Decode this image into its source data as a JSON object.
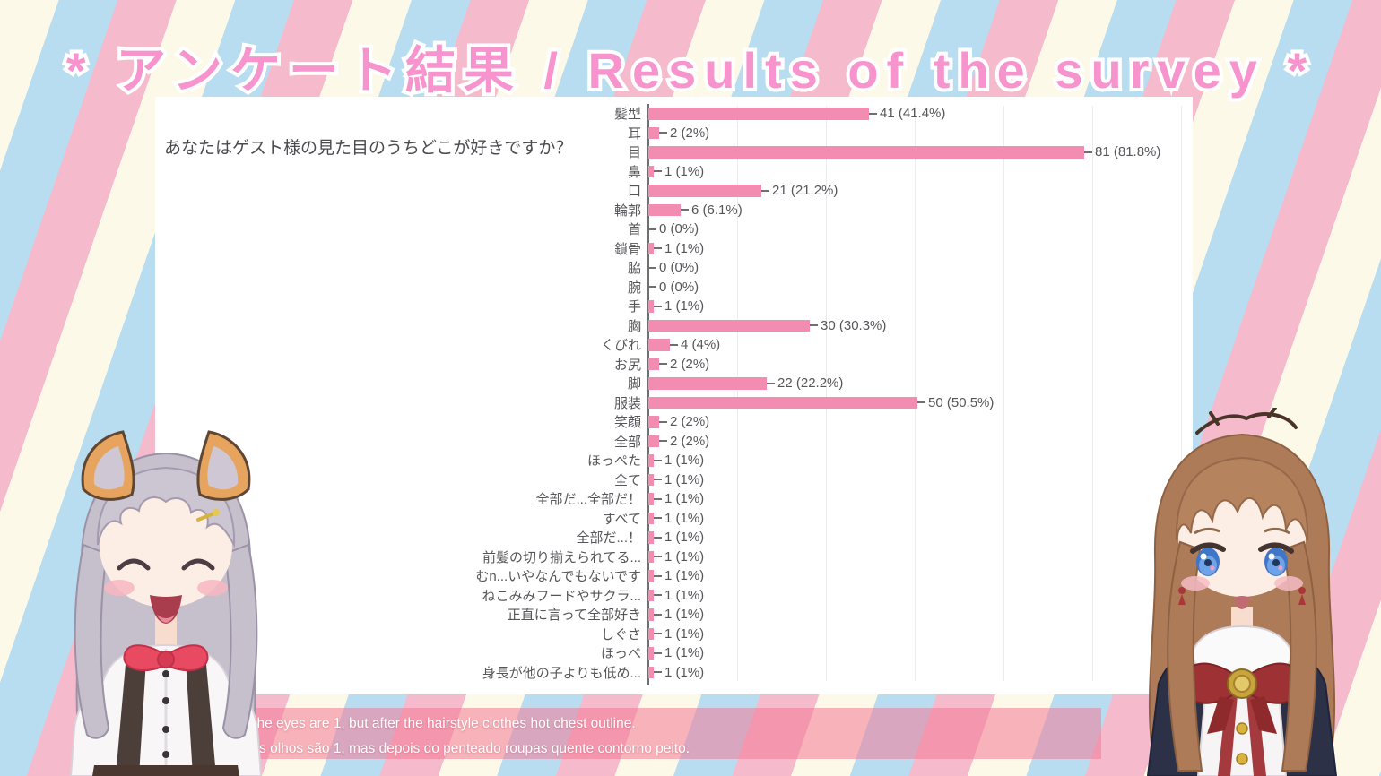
{
  "title": "* アンケート結果 / Results of the survey *",
  "panel": {
    "question": "あなたはゲスト様の見た目のうちどこが好きですか？"
  },
  "chart_data": {
    "type": "bar",
    "orientation": "horizontal",
    "title": "あなたはゲスト様の見た目のうちどこが好きですか？",
    "categories": [
      "髪型",
      "耳",
      "目",
      "鼻",
      "口",
      "輪郭",
      "首",
      "鎖骨",
      "脇",
      "腕",
      "手",
      "胸",
      "くびれ",
      "お尻",
      "脚",
      "服装",
      "笑顔",
      "全部",
      "ほっぺた",
      "全て",
      "全部だ...全部だ！",
      "すべて",
      "全部だ...！",
      "前髪の切り揃えられてる...",
      "むn...いやなんでもないです",
      "ねこみみフードやサクラ...",
      "正直に言って全部好き",
      "しぐさ",
      "ほっぺ",
      "身長が他の子よりも低め..."
    ],
    "values": [
      41,
      2,
      81,
      1,
      21,
      6,
      0,
      1,
      0,
      0,
      1,
      30,
      4,
      2,
      22,
      50,
      2,
      2,
      1,
      1,
      1,
      1,
      1,
      1,
      1,
      1,
      1,
      1,
      1,
      1
    ],
    "value_labels": [
      "41 (41.4%)",
      "2 (2%)",
      "81 (81.8%)",
      "1 (1%)",
      "21 (21.2%)",
      "6 (6.1%)",
      "0 (0%)",
      "1 (1%)",
      "0 (0%)",
      "0 (0%)",
      "1 (1%)",
      "30 (30.3%)",
      "4 (4%)",
      "2 (2%)",
      "22 (22.2%)",
      "50 (50.5%)",
      "2 (2%)",
      "2 (2%)",
      "1 (1%)",
      "1 (1%)",
      "1 (1%)",
      "1 (1%)",
      "1 (1%)",
      "1 (1%)",
      "1 (1%)",
      "1 (1%)",
      "1 (1%)",
      "1 (1%)",
      "1 (1%)",
      "1 (1%)"
    ],
    "xlim": [
      0,
      101
    ],
    "grid": true,
    "bar_color": "#f28cb1"
  },
  "subtitles": {
    "line1": "The eyes are 1, but after the hairstyle clothes hot chest outline.",
    "line2": "Os olhos são 1, mas depois do penteado roupas quente contorno peito."
  },
  "characters": {
    "left": "silver-haired girl with animal ears, eyes closed, smiling",
    "right": "brown-haired girl with blue eyes, red bow and dark cape"
  },
  "colors": {
    "stripe_pink": "#f6bacd",
    "stripe_blue": "#b8ddf1",
    "stripe_cream": "#fdf9e8",
    "title_pink": "#f794cd",
    "bar_pink": "#f28cb1",
    "chart_text": "#56565a",
    "subtitle_overlay": "rgba(242,120,148,0.55)",
    "subtitle_text": "#ffffff"
  }
}
